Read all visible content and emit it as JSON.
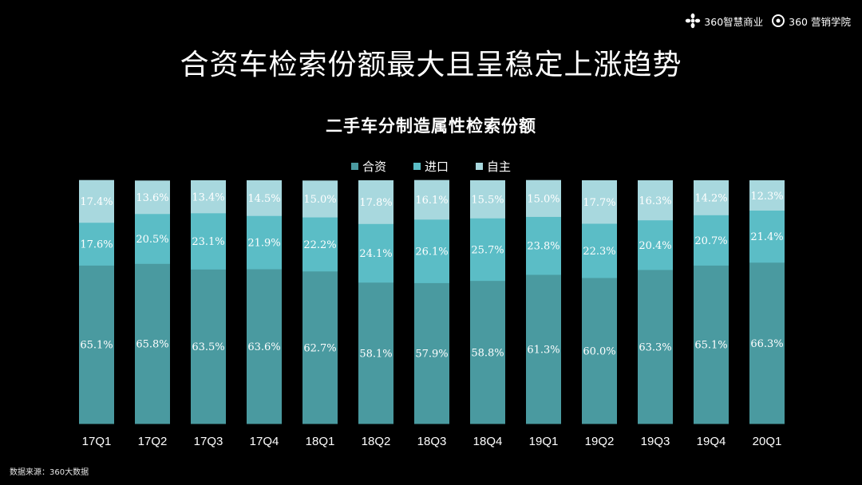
{
  "brand": {
    "logo1_text": "360智慧商业",
    "logo2_text": "360 营销学院"
  },
  "main_title": "合资车检索份额最大且呈稳定上涨趋势",
  "footer": {
    "source": "数据来源：360大数据"
  },
  "colors": {
    "background": "#000000",
    "合资": "#4a9aa0",
    "进口": "#5bbdc6",
    "自主": "#a8d8de"
  },
  "chart_data": {
    "type": "bar",
    "stacked": true,
    "percent": true,
    "title": "二手车分制造属性检索份额",
    "legend_position": "top",
    "categories": [
      "17Q1",
      "17Q2",
      "17Q3",
      "17Q4",
      "18Q1",
      "18Q2",
      "18Q3",
      "18Q4",
      "19Q1",
      "19Q2",
      "19Q3",
      "19Q4",
      "20Q1"
    ],
    "series": [
      {
        "name": "合资",
        "color": "#4a9aa0",
        "values": [
          65.1,
          65.8,
          63.5,
          63.6,
          62.7,
          58.1,
          57.9,
          58.8,
          61.3,
          60.0,
          63.3,
          65.1,
          66.3
        ]
      },
      {
        "name": "进口",
        "color": "#5bbdc6",
        "values": [
          17.6,
          20.5,
          23.1,
          21.9,
          22.2,
          24.1,
          26.1,
          25.7,
          23.8,
          22.3,
          20.4,
          20.7,
          21.4
        ]
      },
      {
        "name": "自主",
        "color": "#a8d8de",
        "values": [
          17.4,
          13.6,
          13.4,
          14.5,
          15.0,
          17.8,
          16.1,
          15.5,
          15.0,
          17.7,
          16.3,
          14.2,
          12.3
        ]
      }
    ],
    "data_labels": [
      [
        "65.1%",
        "65.8%",
        "63.5%",
        "63.6%",
        "62.7%",
        "58.1%",
        "57.9%",
        "58.8%",
        "61.3%",
        "60.0%",
        "63.3%",
        "65.1%",
        "66.3%"
      ],
      [
        "17.6%",
        "20.5%",
        "23.1%",
        "21.9%",
        "22.2%",
        "24.1%",
        "26.1%",
        "25.7%",
        "23.8%",
        "22.3%",
        "20.4%",
        "20.7%",
        "21.4%"
      ],
      [
        "17.4%",
        "13.6%",
        "13.4%",
        "14.5%",
        "15.0%",
        "17.8%",
        "16.1%",
        "15.5%",
        "15.0%",
        "17.7%",
        "16.3%",
        "14.2%",
        "12.3%"
      ]
    ]
  }
}
